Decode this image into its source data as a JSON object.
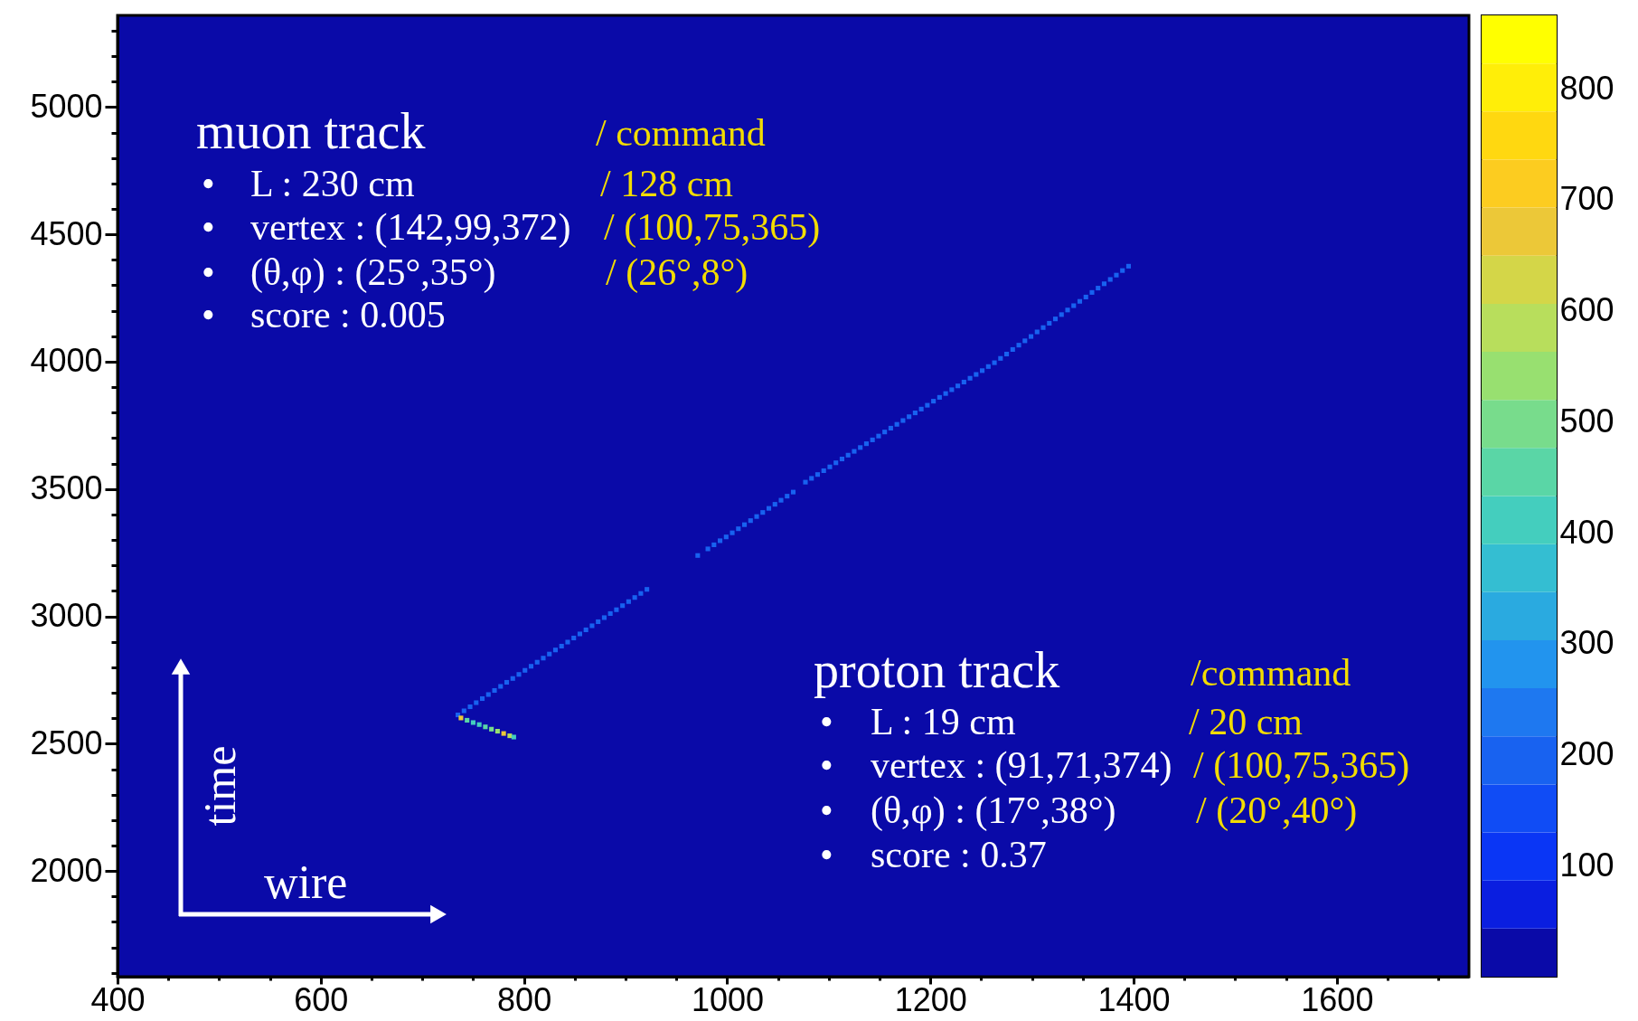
{
  "chart_data": {
    "type": "scatter",
    "marker": "square",
    "xlim": [
      400,
      1730
    ],
    "ylim": [
      1585,
      5360
    ],
    "xticks": [
      400,
      {
        "value": 450,
        "label": null
      },
      {
        "value": 500,
        "label": null
      },
      {
        "value": 550,
        "label": null
      },
      600,
      {
        "value": 650,
        "label": null
      },
      {
        "value": 700,
        "label": null
      },
      {
        "value": 750,
        "label": null
      },
      800,
      {
        "value": 850,
        "label": null
      },
      {
        "value": 900,
        "label": null
      },
      {
        "value": 950,
        "label": null
      },
      1000,
      {
        "value": 1050,
        "label": null
      },
      {
        "value": 1100,
        "label": null
      },
      {
        "value": 1150,
        "label": null
      },
      1200,
      {
        "value": 1250,
        "label": null
      },
      {
        "value": 1300,
        "label": null
      },
      {
        "value": 1350,
        "label": null
      },
      1400,
      {
        "value": 1450,
        "label": null
      },
      {
        "value": 1500,
        "label": null
      },
      {
        "value": 1550,
        "label": null
      },
      1600,
      {
        "value": 1650,
        "label": null
      },
      {
        "value": 1700,
        "label": null
      }
    ],
    "yticks": [
      {
        "value": 1600,
        "label": null
      },
      {
        "value": 1700,
        "label": null
      },
      {
        "value": 1800,
        "label": null
      },
      {
        "value": 1900,
        "label": null
      },
      2000,
      {
        "value": 2100,
        "label": null
      },
      {
        "value": 2200,
        "label": null
      },
      {
        "value": 2300,
        "label": null
      },
      {
        "value": 2400,
        "label": null
      },
      2500,
      {
        "value": 2600,
        "label": null
      },
      {
        "value": 2700,
        "label": null
      },
      {
        "value": 2800,
        "label": null
      },
      {
        "value": 2900,
        "label": null
      },
      3000,
      {
        "value": 3100,
        "label": null
      },
      {
        "value": 3200,
        "label": null
      },
      {
        "value": 3300,
        "label": null
      },
      {
        "value": 3400,
        "label": null
      },
      3500,
      {
        "value": 3600,
        "label": null
      },
      {
        "value": 3700,
        "label": null
      },
      {
        "value": 3800,
        "label": null
      },
      {
        "value": 3900,
        "label": null
      },
      4000,
      {
        "value": 4100,
        "label": null
      },
      {
        "value": 4200,
        "label": null
      },
      {
        "value": 4300,
        "label": null
      },
      {
        "value": 4400,
        "label": null
      },
      4500,
      {
        "value": 4600,
        "label": null
      },
      {
        "value": 4700,
        "label": null
      },
      {
        "value": 4800,
        "label": null
      },
      {
        "value": 4900,
        "label": null
      },
      5000,
      {
        "value": 5100,
        "label": null
      },
      {
        "value": 5200,
        "label": null
      },
      {
        "value": 5300,
        "label": null
      }
    ],
    "clim": [
      0,
      866
    ],
    "cticks": [
      100,
      200,
      300,
      400,
      500,
      600,
      700,
      800
    ],
    "x": [
      735,
      741,
      747,
      753,
      759,
      765,
      771,
      777,
      783,
      789,
      795,
      801,
      807,
      813,
      819,
      825,
      831,
      837,
      843,
      849,
      855,
      861,
      867,
      873,
      879,
      885,
      891,
      897,
      903,
      909,
      915,
      921,
      971,
      981,
      987,
      993,
      999,
      1005,
      1011,
      1017,
      1023,
      1029,
      1035,
      1041,
      1047,
      1053,
      1059,
      1065,
      1077,
      1083,
      1089,
      1095,
      1101,
      1107,
      1113,
      1119,
      1125,
      1131,
      1137,
      1143,
      1149,
      1155,
      1161,
      1167,
      1173,
      1179,
      1185,
      1191,
      1197,
      1203,
      1209,
      1215,
      1221,
      1227,
      1233,
      1239,
      1245,
      1251,
      1257,
      1263,
      1269,
      1275,
      1281,
      1287,
      1293,
      1299,
      1305,
      1311,
      1317,
      1323,
      1329,
      1335,
      1341,
      1347,
      1353,
      1359,
      1365,
      1371,
      1377,
      1383,
      1389,
      1395,
      738,
      744,
      750,
      756,
      762,
      768,
      774,
      780,
      786,
      790
    ],
    "values": [
      2613,
      2629,
      2645,
      2661,
      2677,
      2693,
      2709,
      2725,
      2741,
      2756,
      2772,
      2788,
      2804,
      2820,
      2836,
      2852,
      2868,
      2883,
      2899,
      2915,
      2931,
      2947,
      2963,
      2979,
      2995,
      3011,
      3026,
      3042,
      3058,
      3074,
      3090,
      3106,
      3239,
      3265,
      3281,
      3297,
      3312,
      3328,
      3344,
      3360,
      3376,
      3392,
      3408,
      3424,
      3440,
      3456,
      3472,
      3488,
      3527,
      3542,
      3557,
      3572,
      3587,
      3603,
      3618,
      3633,
      3648,
      3663,
      3678,
      3693,
      3708,
      3724,
      3739,
      3754,
      3769,
      3784,
      3799,
      3814,
      3829,
      3845,
      3860,
      3875,
      3890,
      3905,
      3920,
      3935,
      3950,
      3965,
      3981,
      3996,
      4013,
      4030,
      4048,
      4065,
      4082,
      4099,
      4117,
      4134,
      4151,
      4168,
      4185,
      4203,
      4220,
      4237,
      4254,
      4272,
      4289,
      4306,
      4323,
      4340,
      4358,
      4375,
      2601,
      2592,
      2583,
      2575,
      2566,
      2557,
      2549,
      2540,
      2531,
      2526
    ],
    "cvalues": [
      190,
      190,
      190,
      190,
      190,
      190,
      190,
      190,
      190,
      190,
      190,
      190,
      190,
      190,
      190,
      190,
      190,
      190,
      190,
      190,
      190,
      190,
      190,
      190,
      190,
      190,
      190,
      190,
      190,
      190,
      190,
      190,
      190,
      190,
      190,
      190,
      190,
      190,
      190,
      190,
      190,
      190,
      190,
      190,
      190,
      190,
      190,
      190,
      190,
      190,
      190,
      190,
      190,
      190,
      190,
      190,
      190,
      190,
      190,
      190,
      190,
      190,
      190,
      190,
      190,
      190,
      190,
      190,
      190,
      190,
      190,
      190,
      190,
      190,
      190,
      190,
      190,
      190,
      190,
      190,
      190,
      190,
      190,
      190,
      190,
      190,
      190,
      190,
      190,
      190,
      190,
      190,
      190,
      190,
      190,
      190,
      190,
      190,
      190,
      190,
      190,
      190,
      650,
      450,
      400,
      420,
      450,
      500,
      550,
      650,
      600,
      420
    ],
    "annotations": [
      "muon track",
      "/ command",
      "•",
      "L : 230 cm",
      "/ 128 cm",
      "•",
      "vertex : (142,99,372)",
      "/ (100,75,365)",
      "•",
      "(θ,φ) : (25°,35°)",
      "/ (26°,8°)",
      "•",
      "score : 0.005",
      "proton track",
      "/command",
      "•",
      "L : 19 cm",
      "/ 20 cm",
      "•",
      "vertex : (91,71,374)",
      "/ (100,75,365)",
      "•",
      "(θ,φ) : (17°,38°)",
      "/ (20°,40°)",
      "•",
      "score : 0.37",
      "time",
      "wire"
    ]
  }
}
